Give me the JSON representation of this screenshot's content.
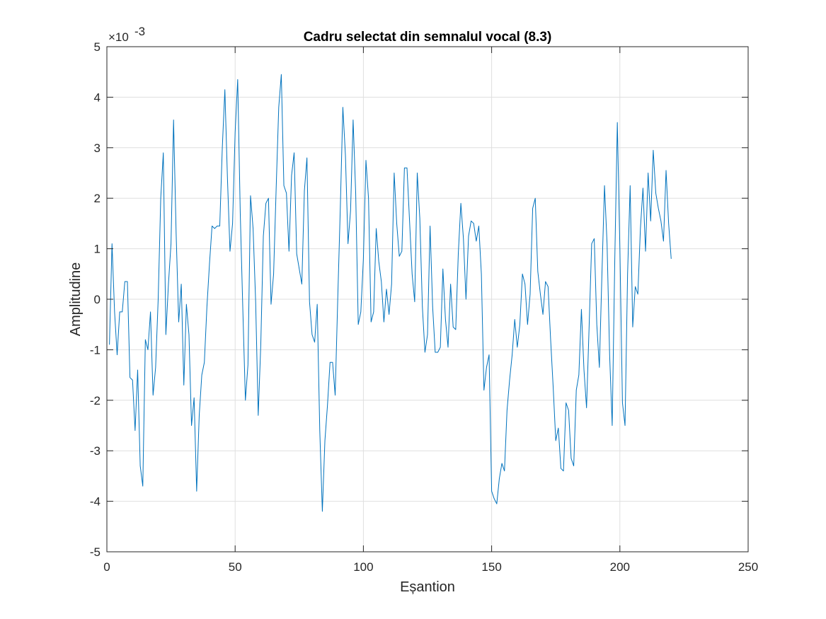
{
  "chart_data": {
    "type": "line",
    "title": "Cadru selectat din semnalul vocal (8.3)",
    "xlabel": "Eșantion",
    "ylabel": "Amplitudine",
    "xlim": [
      0,
      250
    ],
    "ylim": [
      -5,
      5
    ],
    "xticks": [
      0,
      50,
      100,
      150,
      200,
      250
    ],
    "yticks": [
      -5,
      -4,
      -3,
      -2,
      -1,
      0,
      1,
      2,
      3,
      4,
      5
    ],
    "y_multiplier": {
      "base": "×10",
      "exponent": "-3"
    },
    "grid": true,
    "line_color": "#0072bd",
    "series": [
      {
        "x": [
          1,
          2,
          3,
          4,
          5,
          6,
          7,
          8,
          9,
          10,
          11,
          12,
          13,
          14,
          15,
          16,
          17,
          18,
          19,
          20,
          21,
          22,
          23,
          24,
          25,
          26,
          27,
          28,
          29,
          30,
          31,
          32,
          33,
          34,
          35,
          36,
          37,
          38,
          39,
          40,
          41,
          42,
          43,
          44,
          45,
          46,
          47,
          48,
          49,
          50,
          51,
          52,
          53,
          54,
          55,
          56,
          57,
          58,
          59,
          60,
          61,
          62,
          63,
          64,
          65,
          66,
          67,
          68,
          69,
          70,
          71,
          72,
          73,
          74,
          75,
          76,
          77,
          78,
          79,
          80,
          81,
          82,
          83,
          84,
          85,
          86,
          87,
          88,
          89,
          90,
          91,
          92,
          93,
          94,
          95,
          96,
          97,
          98,
          99,
          100,
          101,
          102,
          103,
          104,
          105,
          106,
          107,
          108,
          109,
          110,
          111,
          112,
          113,
          114,
          115,
          116,
          117,
          118,
          119,
          120,
          121,
          122,
          123,
          124,
          125,
          126,
          127,
          128,
          129,
          130,
          131,
          132,
          133,
          134,
          135,
          136,
          137,
          138,
          139,
          140,
          141,
          142,
          143,
          144,
          145,
          146,
          147,
          148,
          149,
          150,
          151,
          152,
          153,
          154,
          155,
          156,
          157,
          158,
          159,
          160,
          161,
          162,
          163,
          164,
          165,
          166,
          167,
          168,
          169,
          170,
          171,
          172,
          173,
          174,
          175,
          176,
          177,
          178,
          179,
          180,
          181,
          182,
          183,
          184,
          185,
          186,
          187,
          188,
          189,
          190,
          191,
          192,
          193,
          194,
          195,
          196,
          197,
          198,
          199,
          200,
          201,
          202,
          203,
          204,
          205,
          206,
          207,
          208,
          209,
          210,
          211,
          212,
          213,
          214,
          215,
          216,
          217,
          218,
          219,
          220
        ],
        "y": [
          -0.9,
          1.1,
          -0.25,
          -1.1,
          -0.25,
          -0.25,
          0.35,
          0.35,
          -1.55,
          -1.6,
          -2.6,
          -1.4,
          -3.3,
          -3.7,
          -0.8,
          -1.0,
          -0.25,
          -1.9,
          -1.35,
          0.0,
          2.0,
          2.9,
          -0.7,
          0.3,
          1.1,
          3.55,
          1.3,
          -0.45,
          0.3,
          -1.7,
          -0.1,
          -0.7,
          -2.5,
          -1.95,
          -3.8,
          -2.3,
          -1.5,
          -1.25,
          -0.15,
          0.7,
          1.45,
          1.4,
          1.45,
          1.45,
          3.0,
          4.15,
          2.4,
          0.95,
          1.5,
          3.3,
          4.35,
          1.7,
          -0.2,
          -2.0,
          -1.3,
          2.05,
          1.4,
          -0.05,
          -2.3,
          -0.9,
          1.25,
          1.9,
          2.0,
          -0.1,
          0.5,
          2.2,
          3.8,
          4.45,
          2.25,
          2.1,
          0.95,
          2.45,
          2.9,
          0.9,
          0.6,
          0.3,
          2.15,
          2.8,
          -0.05,
          -0.7,
          -0.85,
          -0.1,
          -2.6,
          -4.2,
          -2.8,
          -2.1,
          -1.25,
          -1.25,
          -1.9,
          0.0,
          1.8,
          3.8,
          2.85,
          1.1,
          1.75,
          3.55,
          2.1,
          -0.5,
          -0.25,
          0.8,
          2.75,
          2.0,
          -0.45,
          -0.25,
          1.4,
          0.75,
          0.35,
          -0.45,
          0.2,
          -0.3,
          0.3,
          2.5,
          1.5,
          0.85,
          0.95,
          2.6,
          2.6,
          1.55,
          0.5,
          -0.05,
          2.5,
          1.6,
          -0.15,
          -1.05,
          -0.7,
          1.45,
          -0.15,
          -1.05,
          -1.05,
          -0.95,
          0.6,
          -0.4,
          -0.95,
          0.3,
          -0.55,
          -0.6,
          0.9,
          1.9,
          1.2,
          0.0,
          1.25,
          1.55,
          1.5,
          1.15,
          1.45,
          0.5,
          -1.8,
          -1.35,
          -1.1,
          -3.8,
          -3.95,
          -4.05,
          -3.55,
          -3.25,
          -3.4,
          -2.2,
          -1.6,
          -1.1,
          -0.4,
          -0.95,
          -0.5,
          0.5,
          0.3,
          -0.5,
          0.1,
          1.8,
          2.0,
          0.55,
          0.1,
          -0.3,
          0.35,
          0.25,
          -0.8,
          -1.75,
          -2.8,
          -2.55,
          -3.35,
          -3.4,
          -2.05,
          -2.2,
          -3.15,
          -3.3,
          -1.8,
          -1.5,
          -0.2,
          -1.4,
          -2.15,
          -0.55,
          1.1,
          1.2,
          -0.5,
          -1.35,
          0.5,
          2.25,
          1.1,
          -1.1,
          -2.5,
          0.75,
          3.5,
          1.0,
          -2.05,
          -2.5,
          0.5,
          2.25,
          -0.55,
          0.25,
          0.1,
          1.4,
          2.2,
          0.95,
          2.5,
          1.55,
          2.95,
          2.1,
          1.8,
          1.55,
          1.15,
          2.55,
          1.5,
          0.8
        ]
      }
    ]
  }
}
